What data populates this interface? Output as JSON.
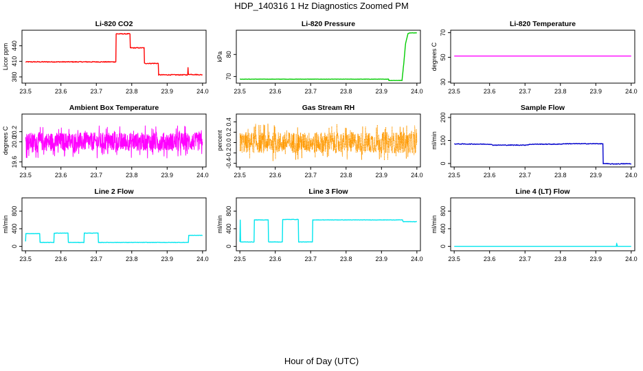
{
  "figure": {
    "title": "HDP_140316  1 Hz Diagnostics Zoomed PM",
    "xlabel": "Hour of Day (UTC)"
  },
  "chart_data": [
    {
      "type": "line",
      "title": "Li-820 CO2",
      "ylabel": "Licor ppm",
      "color": "#ff0000",
      "xlim": [
        23.49,
        24.01
      ],
      "ylim": [
        368,
        470
      ],
      "xticks": [
        "23.5",
        "23.6",
        "23.7",
        "23.8",
        "23.9",
        "24.0"
      ],
      "yticks": [
        "380",
        "410",
        "440"
      ],
      "noise": 0.8,
      "series": [
        {
          "x": [
            23.5,
            23.755,
            23.756,
            23.795,
            23.796,
            23.835,
            23.836,
            23.875,
            23.876,
            23.958,
            23.959,
            23.96,
            23.961,
            24.0
          ],
          "y": [
            409,
            409,
            463,
            463,
            436,
            436,
            406,
            406,
            384,
            384,
            398,
            384,
            385,
            384
          ]
        }
      ]
    },
    {
      "type": "line",
      "title": "Li-820 Pressure",
      "ylabel": "kPa",
      "color": "#00cc00",
      "xlim": [
        23.49,
        24.01
      ],
      "ylim": [
        67,
        91
      ],
      "xticks": [
        "23.5",
        "23.6",
        "23.7",
        "23.8",
        "23.9",
        "24.0"
      ],
      "yticks": [
        "70",
        "80"
      ],
      "noise": 0.05,
      "series": [
        {
          "x": [
            23.5,
            23.92,
            23.921,
            23.958,
            23.963,
            23.968,
            23.975,
            23.98,
            24.0
          ],
          "y": [
            68.8,
            68.8,
            68.2,
            68.2,
            76,
            85,
            89.5,
            89.8,
            89.8
          ]
        }
      ]
    },
    {
      "type": "line",
      "title": "Li-820 Temperature",
      "ylabel": "degrees C",
      "color": "#ff00ff",
      "xlim": [
        23.49,
        24.01
      ],
      "ylim": [
        29,
        72
      ],
      "xticks": [
        "23.5",
        "23.6",
        "23.7",
        "23.8",
        "23.9",
        "24.0"
      ],
      "yticks": [
        "30",
        "50",
        "70"
      ],
      "noise": 0,
      "series": [
        {
          "x": [
            23.5,
            24.0
          ],
          "y": [
            51,
            51
          ]
        }
      ]
    },
    {
      "type": "line",
      "title": "Ambient Box Temperature",
      "ylabel": "degrees C",
      "color": "#ff00ff",
      "xlim": [
        23.49,
        24.01
      ],
      "ylim": [
        19.5,
        20.55
      ],
      "xticks": [
        "23.5",
        "23.6",
        "23.7",
        "23.8",
        "23.9",
        "24.0"
      ],
      "yticks": [
        "19.6",
        "20.0",
        "20.2"
      ],
      "noise": 0.18,
      "dense": true,
      "series": [
        {
          "x": [
            23.5,
            24.0
          ],
          "y": [
            20.0,
            20.0
          ]
        }
      ]
    },
    {
      "type": "line",
      "title": "Gas Stream RH",
      "ylabel": "percent",
      "color": "#ff9900",
      "xlim": [
        23.49,
        24.01
      ],
      "ylim": [
        -0.47,
        0.55
      ],
      "xticks": [
        "23.5",
        "23.6",
        "23.7",
        "23.8",
        "23.9",
        "24.0"
      ],
      "yticks": [
        "-0.4",
        "-0.2",
        "0.0",
        "0.2",
        "0.4"
      ],
      "noise": 0.2,
      "dense": true,
      "dotted": true,
      "series": [
        {
          "x": [
            23.5,
            24.0
          ],
          "y": [
            0.0,
            0.0
          ]
        }
      ]
    },
    {
      "type": "line",
      "title": "Sample Flow",
      "ylabel": "ml/min",
      "color": "#0000cc",
      "xlim": [
        23.49,
        24.01
      ],
      "ylim": [
        -15,
        215
      ],
      "xticks": [
        "23.5",
        "23.6",
        "23.7",
        "23.8",
        "23.9",
        "24.0"
      ],
      "yticks": [
        "0",
        "100",
        "200"
      ],
      "noise": 1.5,
      "series": [
        {
          "x": [
            23.5,
            23.6,
            23.61,
            23.7,
            23.72,
            23.8,
            23.81,
            23.9,
            23.915,
            23.92,
            23.921,
            23.94,
            24.0
          ],
          "y": [
            85,
            84,
            80,
            80,
            84,
            84,
            86,
            86,
            86,
            85,
            0,
            -2,
            -1
          ]
        }
      ]
    },
    {
      "type": "line",
      "title": "Line 2 Flow",
      "ylabel": "ml/min",
      "color": "#00e5ee",
      "xlim": [
        23.49,
        24.01
      ],
      "ylim": [
        -100,
        1100
      ],
      "xticks": [
        "23.5",
        "23.6",
        "23.7",
        "23.8",
        "23.9",
        "24.0"
      ],
      "yticks": [
        "0",
        "400",
        "800"
      ],
      "noise": 4,
      "series": [
        {
          "x": [
            23.5,
            23.501,
            23.54,
            23.541,
            23.58,
            23.581,
            23.62,
            23.621,
            23.665,
            23.666,
            23.705,
            23.706,
            23.96,
            23.961,
            24.0
          ],
          "y": [
            110,
            290,
            290,
            90,
            90,
            300,
            300,
            90,
            90,
            300,
            300,
            90,
            90,
            250,
            250
          ]
        }
      ]
    },
    {
      "type": "line",
      "title": "Line 3 Flow",
      "ylabel": "ml/min",
      "color": "#00e5ee",
      "xlim": [
        23.49,
        24.01
      ],
      "ylim": [
        -100,
        1100
      ],
      "xticks": [
        "23.5",
        "23.6",
        "23.7",
        "23.8",
        "23.9",
        "24.0"
      ],
      "yticks": [
        "0",
        "400",
        "800"
      ],
      "noise": 4,
      "series": [
        {
          "x": [
            23.5,
            23.501,
            23.502,
            23.54,
            23.541,
            23.58,
            23.581,
            23.62,
            23.621,
            23.665,
            23.666,
            23.705,
            23.706,
            23.96,
            23.961,
            24.0
          ],
          "y": [
            100,
            600,
            100,
            100,
            600,
            600,
            100,
            100,
            610,
            610,
            100,
            100,
            600,
            600,
            560,
            560
          ]
        }
      ]
    },
    {
      "type": "line",
      "title": "Line 4 (LT) Flow",
      "ylabel": "ml/min",
      "color": "#00e5ee",
      "xlim": [
        23.49,
        24.01
      ],
      "ylim": [
        -100,
        1100
      ],
      "xticks": [
        "23.5",
        "23.6",
        "23.7",
        "23.8",
        "23.9",
        "24.0"
      ],
      "yticks": [
        "0",
        "400",
        "800"
      ],
      "noise": 0,
      "series": [
        {
          "x": [
            23.5,
            23.958,
            23.959,
            23.9595,
            23.96,
            23.961,
            24.0
          ],
          "y": [
            0,
            0,
            70,
            0,
            40,
            0,
            0
          ]
        }
      ]
    }
  ]
}
